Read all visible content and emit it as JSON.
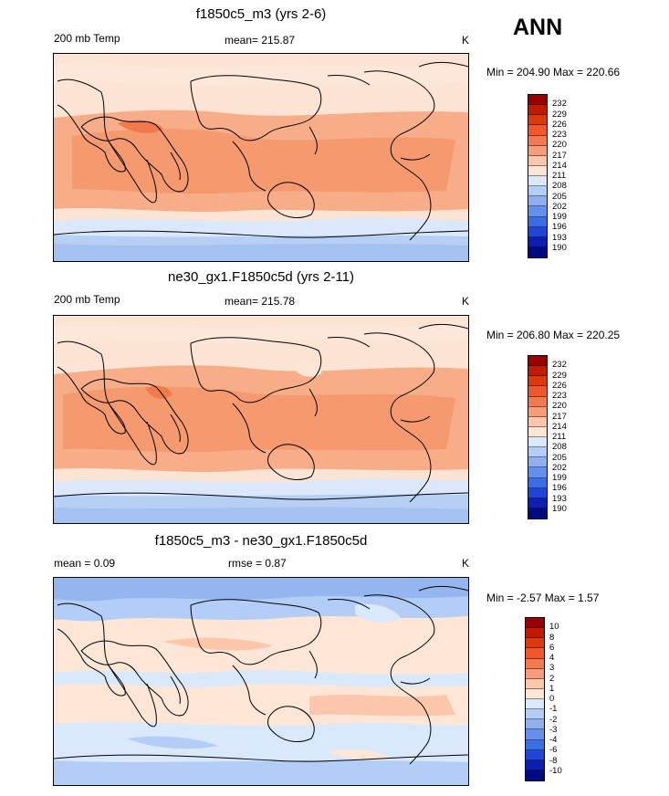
{
  "season": "ANN",
  "chart_data": [
    {
      "type": "heatmap",
      "title": "f1850c5_m3 (yrs 2-6)",
      "left_label": "200 mb Temp",
      "center_label": "mean= 215.87",
      "units": "K",
      "minmax": "Min = 204.90 Max = 220.66",
      "mean": 215.87,
      "min": 204.9,
      "max": 220.66,
      "levels": [
        "232",
        "229",
        "226",
        "223",
        "220",
        "217",
        "214",
        "211",
        "208",
        "205",
        "202",
        "199",
        "196",
        "193",
        "190"
      ],
      "colors": [
        "#9a0000",
        "#c11a00",
        "#dd3a0a",
        "#f0572b",
        "#f27a50",
        "#f59c7a",
        "#fbc6a9",
        "#fde6d6",
        "#d9e8fb",
        "#b2cef6",
        "#8eb0f0",
        "#6390ec",
        "#3a6ee6",
        "#1f46d8",
        "#0d1fb0",
        "#000a80"
      ]
    },
    {
      "type": "heatmap",
      "title": "ne30_gx1.F1850c5d (yrs 2-11)",
      "left_label": "200 mb Temp",
      "center_label": "mean= 215.78",
      "units": "K",
      "minmax": "Min = 206.80 Max = 220.25",
      "mean": 215.78,
      "min": 206.8,
      "max": 220.25,
      "levels": [
        "232",
        "229",
        "226",
        "223",
        "220",
        "217",
        "214",
        "211",
        "208",
        "205",
        "202",
        "199",
        "196",
        "193",
        "190"
      ],
      "colors": [
        "#9a0000",
        "#c11a00",
        "#dd3a0a",
        "#f0572b",
        "#f27a50",
        "#f59c7a",
        "#fbc6a9",
        "#fde6d6",
        "#d9e8fb",
        "#b2cef6",
        "#8eb0f0",
        "#6390ec",
        "#3a6ee6",
        "#1f46d8",
        "#0d1fb0",
        "#000a80"
      ]
    },
    {
      "type": "heatmap",
      "title": "f1850c5_m3 - ne30_gx1.F1850c5d",
      "left_label": "mean =   0.09",
      "center_label": "rmse =   0.87",
      "units": "K",
      "minmax": "Min =  -2.57 Max =   1.57",
      "mean": 0.09,
      "rmse": 0.87,
      "min": -2.57,
      "max": 1.57,
      "levels": [
        "10",
        "8",
        "6",
        "4",
        "3",
        "2",
        "1",
        "0",
        "-1",
        "-2",
        "-3",
        "-4",
        "-6",
        "-8",
        "-10"
      ],
      "colors": [
        "#9a0000",
        "#c11a00",
        "#dd3a0a",
        "#f0572b",
        "#f27a50",
        "#f59c7a",
        "#fbc6a9",
        "#fde6d6",
        "#d9e8fb",
        "#b2cef6",
        "#8eb0f0",
        "#6390ec",
        "#3a6ee6",
        "#1f46d8",
        "#0d1fb0",
        "#000a80"
      ]
    }
  ]
}
